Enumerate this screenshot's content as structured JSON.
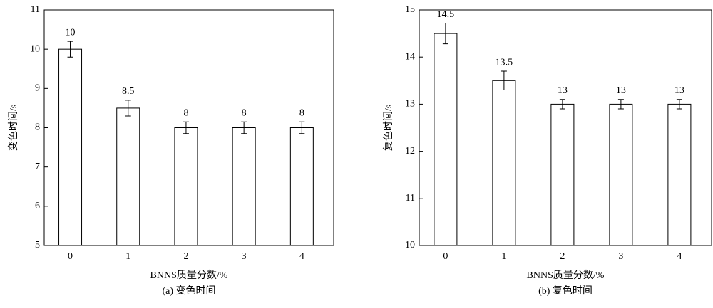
{
  "chart_data": [
    {
      "type": "bar",
      "categories": [
        "0",
        "1",
        "2",
        "3",
        "4"
      ],
      "values": [
        10,
        8.5,
        8,
        8,
        8
      ],
      "errors": [
        0.2,
        0.2,
        0.15,
        0.15,
        0.15
      ],
      "ylim": [
        5,
        11
      ],
      "yticks": [
        5,
        6,
        7,
        8,
        9,
        10,
        11
      ],
      "y_label": "变色时间/s",
      "x_label": "BNNS质量分数/%",
      "caption": "(a) 变色时间",
      "color": "#ffffff"
    },
    {
      "type": "bar",
      "categories": [
        "0",
        "1",
        "2",
        "3",
        "4"
      ],
      "values": [
        14.5,
        13.5,
        13,
        13,
        13
      ],
      "errors": [
        0.22,
        0.2,
        0.1,
        0.1,
        0.1
      ],
      "ylim": [
        10,
        15
      ],
      "yticks": [
        10,
        11,
        12,
        13,
        14,
        15
      ],
      "y_label": "复色时间/s",
      "x_label": "BNNS质量分数/%",
      "caption": "(b) 复色时间",
      "color": "#ffffff"
    }
  ]
}
